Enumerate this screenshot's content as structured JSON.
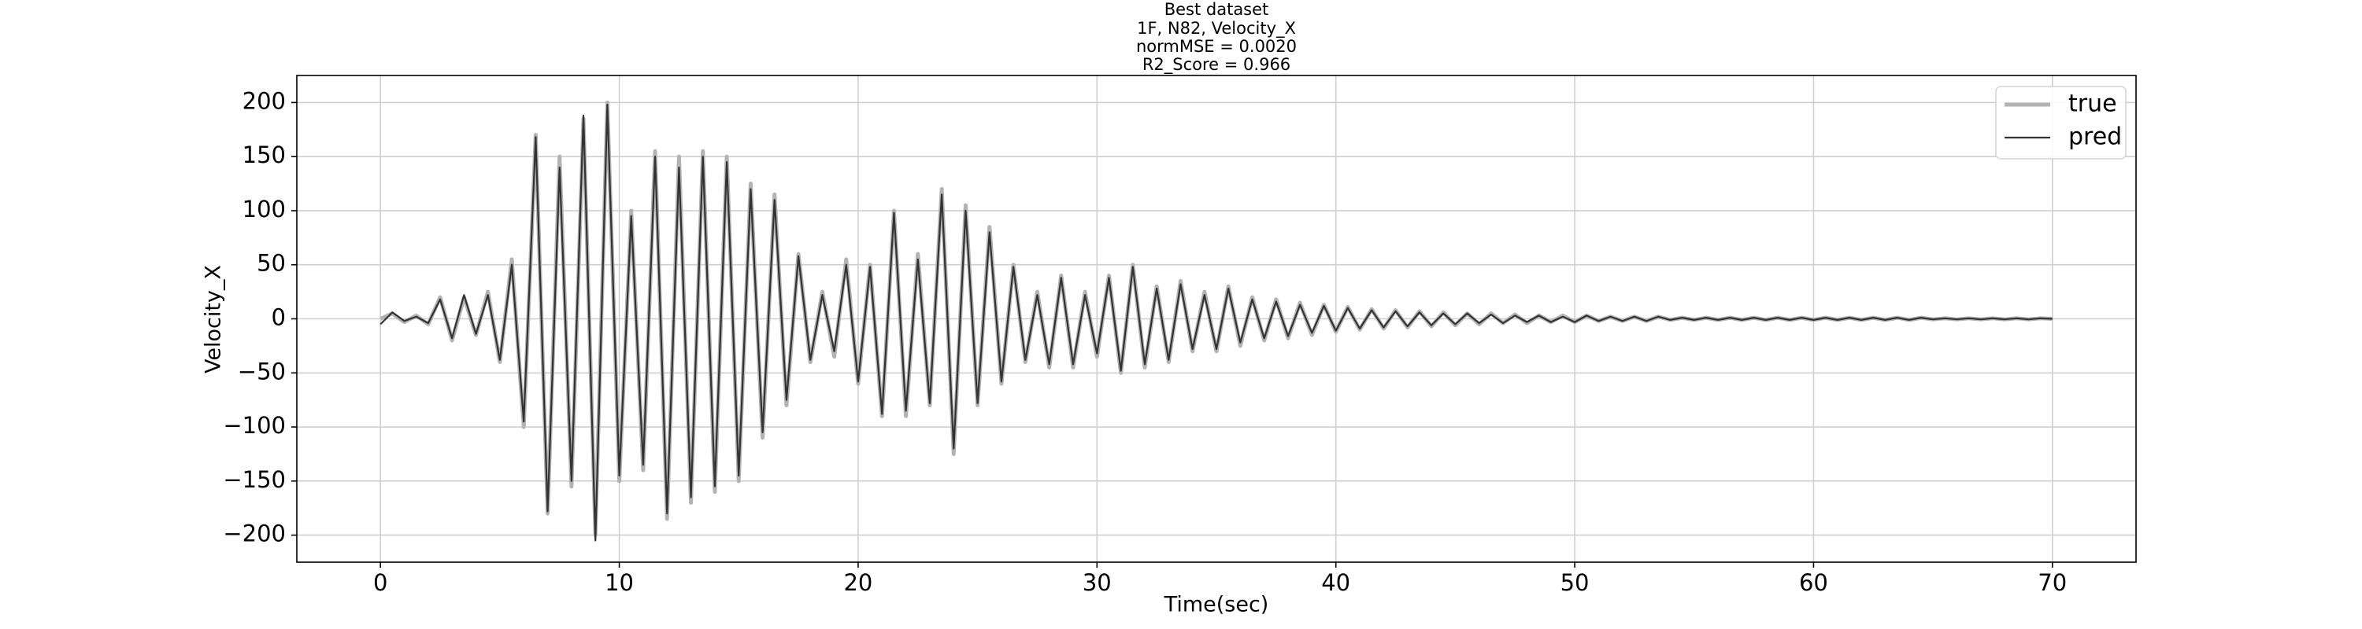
{
  "chart_data": {
    "type": "line",
    "title": [
      "Best dataset",
      "1F, N82, Velocity_X",
      "normMSE = 0.0020",
      "R2_Score = 0.966"
    ],
    "x_label": "Time(sec)",
    "y_label": "Velocity_X",
    "x": [
      0,
      0.5,
      1,
      1.5,
      2,
      2.5,
      3,
      3.5,
      4,
      4.5,
      5,
      5.5,
      6,
      6.5,
      7,
      7.5,
      8,
      8.5,
      9,
      9.5,
      10,
      10.5,
      11,
      11.5,
      12,
      12.5,
      13,
      13.5,
      14,
      14.5,
      15,
      15.5,
      16,
      16.5,
      17,
      17.5,
      18,
      18.5,
      19,
      19.5,
      20,
      20.5,
      21,
      21.5,
      22,
      22.5,
      23,
      23.5,
      24,
      24.5,
      25,
      25.5,
      26,
      26.5,
      27,
      27.5,
      28,
      28.5,
      29,
      29.5,
      30,
      30.5,
      31,
      31.5,
      32,
      32.5,
      33,
      33.5,
      34,
      34.5,
      35,
      35.5,
      36,
      36.5,
      37,
      37.5,
      38,
      38.5,
      39,
      39.5,
      40,
      40.5,
      41,
      41.5,
      42,
      42.5,
      43,
      43.5,
      44,
      44.5,
      45,
      45.5,
      46,
      46.5,
      47,
      47.5,
      48,
      48.5,
      49,
      49.5,
      50,
      50.5,
      51,
      51.5,
      52,
      52.5,
      53,
      53.5,
      54,
      54.5,
      55,
      55.5,
      56,
      56.5,
      57,
      57.5,
      58,
      58.5,
      59,
      59.5,
      60,
      60.5,
      61,
      61.5,
      62,
      62.5,
      63,
      63.5,
      64,
      64.5,
      65,
      65.5,
      66,
      66.5,
      67,
      67.5,
      68,
      68.5,
      69,
      69.5,
      70
    ],
    "series": [
      {
        "name": "true",
        "color": "#b3b3b3",
        "values": [
          0,
          5,
          -3,
          3,
          -5,
          20,
          -20,
          20,
          -15,
          25,
          -40,
          55,
          -100,
          170,
          -180,
          150,
          -155,
          185,
          -200,
          200,
          -150,
          100,
          -140,
          155,
          -185,
          150,
          -170,
          155,
          -160,
          150,
          -150,
          125,
          -110,
          115,
          -80,
          60,
          -40,
          25,
          -35,
          55,
          -60,
          50,
          -90,
          100,
          -90,
          60,
          -80,
          120,
          -125,
          105,
          -80,
          85,
          -60,
          50,
          -40,
          25,
          -45,
          40,
          -45,
          25,
          -35,
          40,
          -50,
          50,
          -45,
          30,
          -40,
          35,
          -30,
          25,
          -30,
          30,
          -25,
          20,
          -20,
          18,
          -18,
          15,
          -15,
          13,
          -12,
          11,
          -10,
          9,
          -9,
          8,
          -8,
          7,
          -7,
          6,
          -6,
          5,
          -5,
          5,
          -4,
          4,
          -4,
          3,
          -3,
          3,
          -3,
          3,
          -2,
          2,
          -2,
          2,
          -2,
          2,
          -1,
          1,
          -1,
          1,
          -1,
          1,
          -1,
          1,
          -1,
          1,
          -1,
          1,
          -1,
          1,
          -1,
          1,
          -1,
          1,
          -1,
          1,
          -1,
          1,
          -0.5,
          0.5,
          -0.5,
          0.5,
          -0.5,
          0.5,
          -0.5,
          0.5,
          -0.5,
          0.5,
          0
        ]
      },
      {
        "name": "pred",
        "color": "#333333",
        "values": [
          -5,
          6,
          -2,
          2,
          -4,
          18,
          -18,
          22,
          -14,
          22,
          -38,
          50,
          -95,
          168,
          -178,
          140,
          -150,
          188,
          -205,
          198,
          -145,
          95,
          -135,
          150,
          -180,
          140,
          -165,
          150,
          -155,
          145,
          -145,
          120,
          -105,
          110,
          -75,
          58,
          -38,
          22,
          -30,
          50,
          -58,
          48,
          -88,
          98,
          -85,
          55,
          -78,
          115,
          -120,
          100,
          -78,
          80,
          -58,
          48,
          -38,
          22,
          -42,
          38,
          -42,
          22,
          -32,
          38,
          -48,
          48,
          -42,
          28,
          -38,
          32,
          -28,
          22,
          -28,
          28,
          -22,
          18,
          -18,
          16,
          -16,
          13,
          -13,
          12,
          -11,
          10,
          -9,
          8,
          -8,
          7,
          -7,
          6,
          -6,
          5,
          -5,
          5,
          -4,
          4,
          -4,
          3,
          -3,
          3,
          -3,
          2,
          -3,
          3,
          -2,
          2,
          -2,
          2,
          -2,
          2,
          -1,
          1,
          -1,
          1,
          -1,
          1,
          -1,
          1,
          -1,
          1,
          -1,
          1,
          -1,
          1,
          -1,
          1,
          -1,
          1,
          -1,
          1,
          -1,
          1,
          -0.5,
          0.5,
          -0.5,
          0.5,
          -0.5,
          0.5,
          -0.5,
          0.5,
          -0.5,
          0.5,
          0
        ]
      }
    ],
    "xlim": [
      -3.5,
      73.5
    ],
    "ylim": [
      -225,
      225
    ],
    "xticks": [
      0,
      10,
      20,
      30,
      40,
      50,
      60,
      70
    ],
    "yticks": [
      {
        "value": -200,
        "label": "−200"
      },
      {
        "value": -150,
        "label": "−150"
      },
      {
        "value": -100,
        "label": "−100"
      },
      {
        "value": -50,
        "label": "−50"
      },
      0,
      50,
      100,
      150,
      200
    ],
    "grid": true,
    "legend": "upper right"
  }
}
